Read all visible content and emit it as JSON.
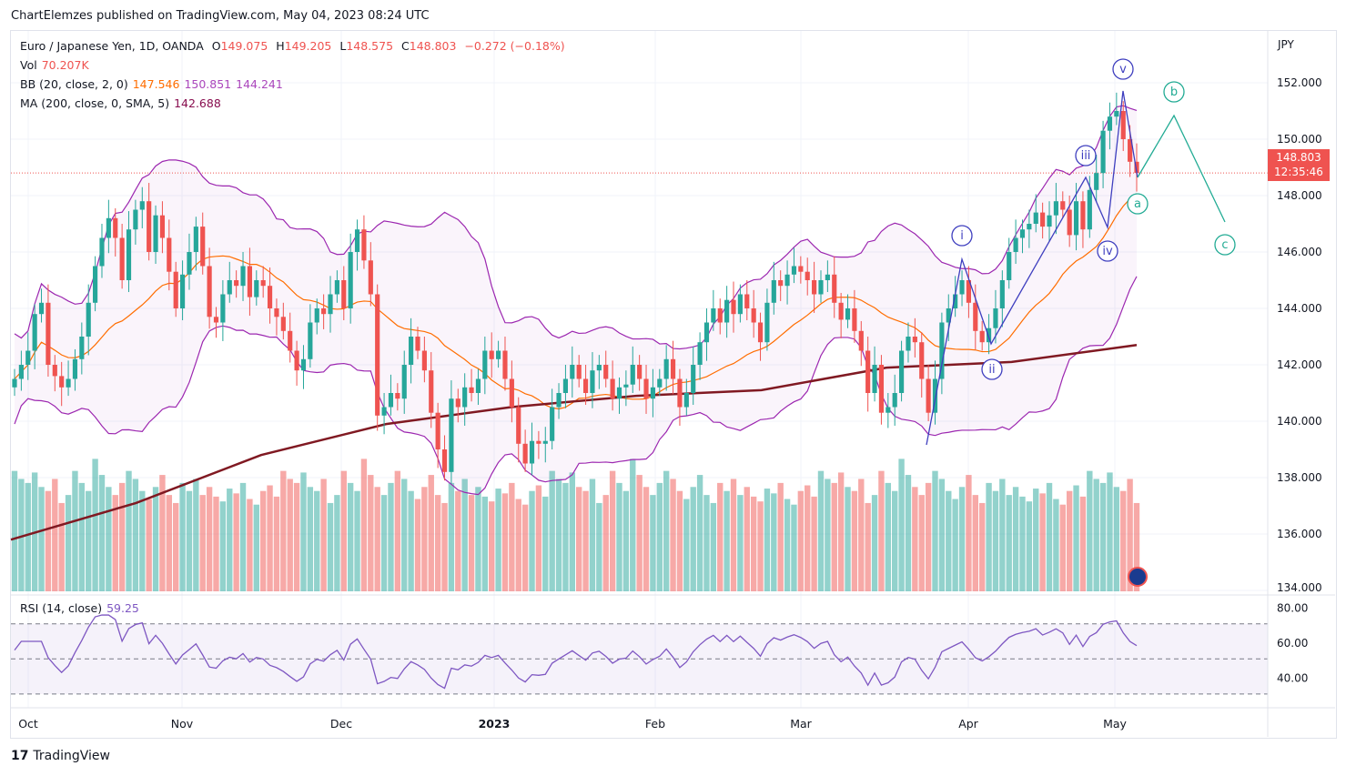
{
  "publisher_line": "ChartElemzes published on TradingView.com, May 04, 2023 08:24 UTC",
  "legend": {
    "symbol": "Euro / Japanese Yen, 1D, OANDA",
    "o_label": "O",
    "o": "149.075",
    "h_label": "H",
    "h": "149.205",
    "l_label": "L",
    "l": "148.575",
    "c_label": "C",
    "c": "148.803",
    "change": "−0.272 (−0.18%)",
    "vol_label": "Vol",
    "vol": "70.207K",
    "bb_label": "BB (20, close, 2, 0)",
    "bb_basis": "147.546",
    "bb_upper": "150.851",
    "bb_lower": "144.241",
    "ma_label": "MA (200, close, 0, SMA, 5)",
    "ma": "142.688",
    "rsi_label": "RSI (14, close)",
    "rsi": "59.25"
  },
  "price_axis": {
    "currency": "JPY",
    "ticks": [
      "152.000",
      "150.000",
      "148.000",
      "146.000",
      "144.000",
      "142.000",
      "140.000",
      "138.000",
      "136.000",
      "134.000"
    ],
    "last_price": "148.803",
    "countdown": "12:35:46"
  },
  "rsi_axis": {
    "ticks": [
      "80.00",
      "60.00",
      "40.00"
    ]
  },
  "time_axis": {
    "labels": [
      "Oct",
      "Nov",
      "Dec",
      "2023",
      "Feb",
      "Mar",
      "Apr",
      "May"
    ]
  },
  "wave_labels": [
    "i",
    "ii",
    "iii",
    "iv",
    "v",
    "a",
    "b",
    "c"
  ],
  "logo": "TradingView",
  "colors": {
    "up": "#26a69a",
    "down": "#ef5350",
    "bb_basis": "#ff6d00",
    "bb_band": "#9c27b0",
    "ma200": "#801922",
    "rsi": "#7e57c2",
    "wave_impulse": "#3f3fbf",
    "wave_corrective": "#22ab94"
  },
  "chart_data": {
    "type": "candlestick",
    "ylim": [
      134,
      153
    ],
    "closes": [
      141.5,
      142,
      142.5,
      143.8,
      144.2,
      142,
      141.6,
      141.2,
      141.5,
      142.2,
      143,
      144.2,
      145.5,
      146.5,
      147.2,
      146.5,
      145,
      146.8,
      147.5,
      147.8,
      146,
      147.3,
      146.5,
      145.3,
      144,
      145.2,
      146,
      146.9,
      145.5,
      143.7,
      143.5,
      144.5,
      145,
      144.8,
      145.5,
      144.4,
      145,
      144.8,
      144,
      143.7,
      143.2,
      142.5,
      141.8,
      142.2,
      143.5,
      144,
      143.8,
      144.5,
      145,
      144,
      146,
      146.8,
      145.7,
      144.5,
      140.2,
      140.5,
      141,
      140.8,
      142,
      143,
      142.5,
      141.8,
      140.3,
      139,
      138.2,
      140.8,
      140.5,
      141.2,
      141,
      141.5,
      142.5,
      142.2,
      142.5,
      141.5,
      140.5,
      139.2,
      138.5,
      139.3,
      139.2,
      139.3,
      140.5,
      141,
      141.5,
      142,
      141.5,
      141,
      141.8,
      142,
      141.5,
      140.8,
      141.2,
      141.3,
      142,
      141.5,
      140.8,
      141.2,
      141.5,
      142.2,
      141.5,
      140.5,
      141,
      142,
      142.8,
      143.5,
      144,
      143.5,
      144.3,
      143.8,
      144.5,
      144,
      143.5,
      142.8,
      144.2,
      145,
      144.8,
      145.2,
      145.5,
      145.3,
      145,
      144.5,
      145,
      145.2,
      144.2,
      143.6,
      144,
      143.2,
      142.5,
      141,
      142,
      140.3,
      140.5,
      141,
      142.5,
      143,
      142.8,
      141.5,
      140.3,
      141.5,
      143.5,
      144,
      144.5,
      145,
      144.2,
      143.2,
      142.8,
      143.3,
      144,
      145,
      146,
      146.5,
      146.8,
      147,
      147.4,
      146.9,
      147.3,
      147.8,
      147.5,
      146.6,
      147.8,
      146.8,
      148.2,
      148.8,
      150.3,
      150.8,
      151,
      150,
      149.2,
      148.803
    ],
    "volume_k": [
      150,
      140,
      135,
      148,
      130,
      125,
      140,
      110,
      120,
      150,
      135,
      125,
      165,
      145,
      130,
      120,
      135,
      150,
      140,
      125,
      115,
      130,
      145,
      120,
      110,
      135,
      125,
      140,
      120,
      130,
      118,
      112,
      128,
      122,
      135,
      115,
      108,
      125,
      132,
      118
    ],
    "ma200_knots": [
      135.8,
      137.1,
      138.8,
      139.9,
      140.5,
      140.9,
      141.1,
      141.9,
      142.1,
      142.7
    ],
    "rsi_guides": [
      70,
      50,
      30
    ]
  }
}
